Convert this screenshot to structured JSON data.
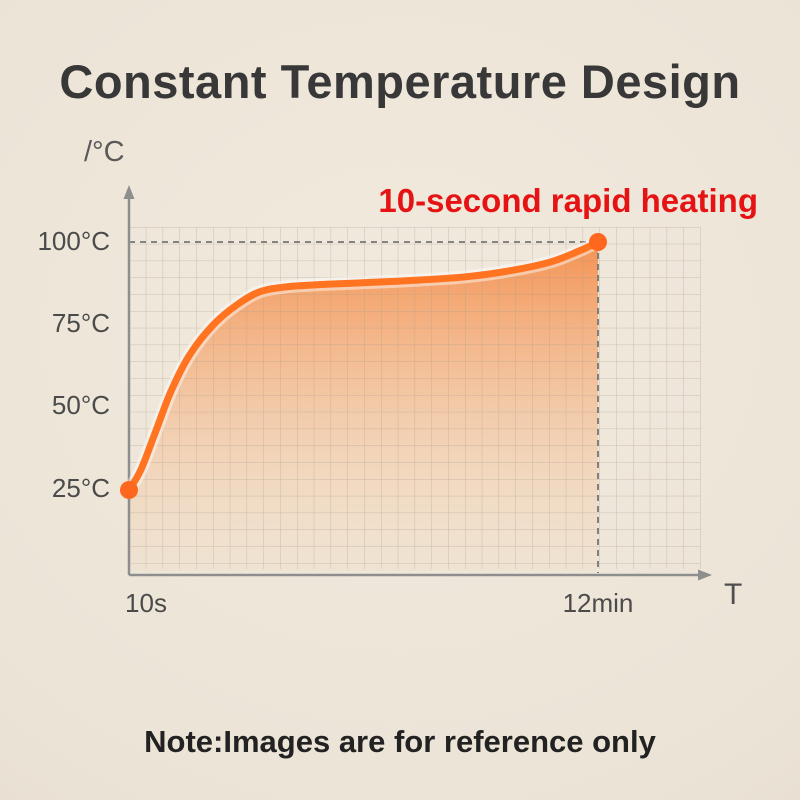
{
  "chart_data": {
    "type": "area",
    "title": "Constant Temperature Design",
    "annotation": "10-second rapid heating",
    "y_axis_unit": "/°C",
    "x_axis_label": "T",
    "y_tick_labels": [
      "100°C",
      "75°C",
      "50°C",
      "25°C"
    ],
    "y_tick_values": [
      100,
      75,
      50,
      25
    ],
    "x_tick_labels": [
      "10s",
      "12min"
    ],
    "ylim": [
      0,
      112
    ],
    "grid": true,
    "legend": "none",
    "series": [
      {
        "name": "temperature-curve",
        "points": [
          [
            0,
            25
          ],
          [
            0.025,
            31
          ],
          [
            0.055,
            42
          ],
          [
            0.09,
            55
          ],
          [
            0.13,
            66
          ],
          [
            0.18,
            75
          ],
          [
            0.23,
            81
          ],
          [
            0.28,
            85
          ],
          [
            0.34,
            86.5
          ],
          [
            0.42,
            87.2
          ],
          [
            0.52,
            87.8
          ],
          [
            0.62,
            88.5
          ],
          [
            0.72,
            89.5
          ],
          [
            0.82,
            91.5
          ],
          [
            0.9,
            94
          ],
          [
            0.96,
            97.3
          ],
          [
            1,
            100
          ]
        ]
      }
    ],
    "key_points": [
      {
        "x_label": "10s",
        "temp": 25
      },
      {
        "x_label": "12min",
        "temp": 100
      }
    ],
    "colors": {
      "line": "#ff7321",
      "point": "#ff671f",
      "area_top": "#f57a2c",
      "area_mid": "#f7a86f",
      "area_bottom": "#f8cfa8",
      "grid": "#a39a8c",
      "axis": "#8e8e8e",
      "dashed": "#767676",
      "annotation": "#e51313",
      "title_text": "#383838",
      "background": "#ebe3d6"
    }
  },
  "footer": {
    "note": "Note:Images are for reference only"
  }
}
